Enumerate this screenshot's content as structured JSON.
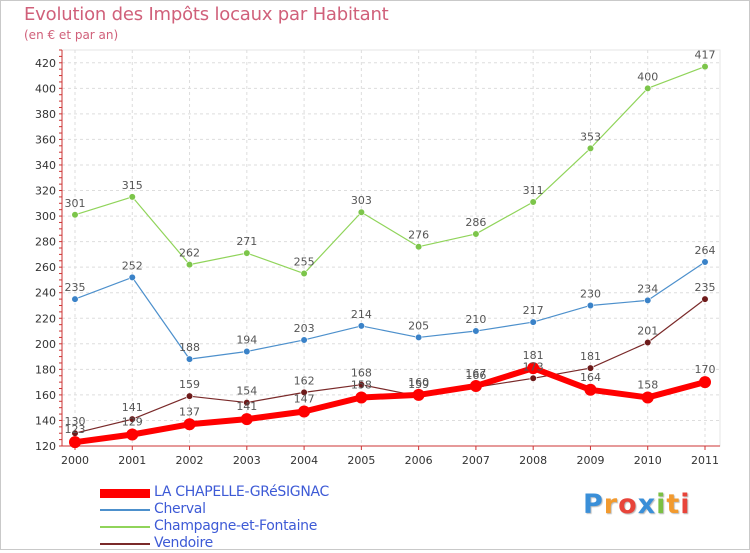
{
  "title": "Evolution des Impôts locaux par Habitant",
  "subtitle": "(en € et par an)",
  "logo": {
    "letters": [
      "P",
      "r",
      "o",
      "x",
      "i",
      "t",
      "i"
    ],
    "colors": [
      "#3a8fd8",
      "#f29a2e",
      "#e8443a",
      "#3a8fd8",
      "#7bc043",
      "#f29a2e",
      "#e8443a"
    ]
  },
  "chart_data": {
    "type": "line",
    "title": "Evolution des Impôts locaux par Habitant",
    "subtitle": "(en € et par an)",
    "xlabel": "",
    "ylabel": "",
    "x": [
      "2000",
      "2001",
      "2002",
      "2003",
      "2004",
      "2005",
      "2006",
      "2007",
      "2008",
      "2009",
      "2010",
      "2011"
    ],
    "ylim": [
      120,
      430
    ],
    "yticks": [
      120,
      140,
      160,
      180,
      200,
      220,
      240,
      260,
      280,
      300,
      320,
      340,
      360,
      380,
      400,
      420
    ],
    "legend_position": "bottom-left",
    "series": [
      {
        "name": "LA CHAPELLE-GRéSIGNAC",
        "values": [
          123,
          129,
          137,
          141,
          147,
          158,
          160,
          167,
          181,
          164,
          158,
          170
        ],
        "labels": [
          "123",
          "129",
          "137",
          "141",
          "147",
          "158",
          "160",
          "167",
          "181",
          "164",
          "158",
          "170"
        ],
        "color": "#ff0000",
        "marker_color": "#ff0000",
        "width": 6,
        "marker_r": 6
      },
      {
        "name": "Cherval",
        "values": [
          235,
          252,
          188,
          194,
          203,
          214,
          205,
          210,
          217,
          230,
          234,
          264
        ],
        "labels": [
          "235",
          "252",
          "188",
          "194",
          "203",
          "214",
          "205",
          "210",
          "217",
          "230",
          "234",
          "264"
        ],
        "color": "#4d90cc",
        "marker_color": "#3a82c8",
        "width": 1.2,
        "marker_r": 3.3
      },
      {
        "name": "Champagne-et-Fontaine",
        "values": [
          301,
          315,
          262,
          271,
          255,
          303,
          276,
          286,
          311,
          353,
          400,
          417
        ],
        "labels": [
          "301",
          "315",
          "262",
          "271",
          "255",
          "303",
          "276",
          "286",
          "311",
          "353",
          "400",
          "417"
        ],
        "color": "#90d45a",
        "marker_color": "#7cc54a",
        "width": 1.2,
        "marker_r": 3.3
      },
      {
        "name": "Vendoire",
        "values": [
          130,
          141,
          159,
          154,
          162,
          168,
          159,
          166,
          173,
          181,
          201,
          235
        ],
        "labels": [
          "130",
          "141",
          "159",
          "154",
          "162",
          "168",
          "159",
          "166",
          "173",
          "181",
          "201",
          "235"
        ],
        "color": "#7a2a2a",
        "marker_color": "#6e1a1a",
        "width": 1.2,
        "marker_r": 3.3
      }
    ]
  }
}
